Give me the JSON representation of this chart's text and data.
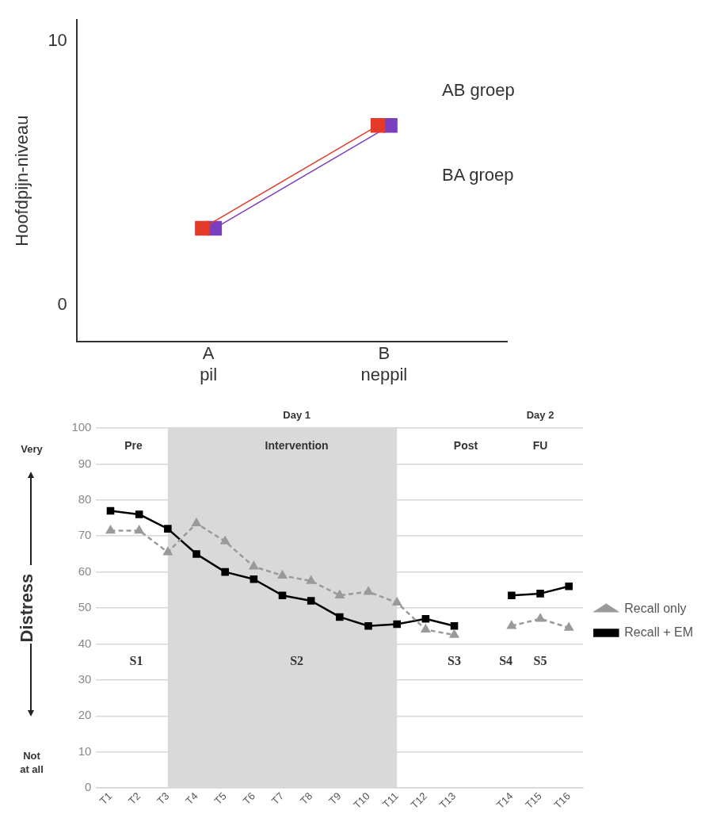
{
  "chart_data": [
    {
      "type": "line",
      "ylabel": "Hoofdpijn-niveau",
      "categories": [
        "A\npil",
        "B\nneppil"
      ],
      "ylim": [
        -1.4,
        10.8
      ],
      "yticks": [
        0,
        10
      ],
      "grid": false,
      "legend": false,
      "marker": "square",
      "series": [
        {
          "color": "#e53a2a",
          "values": [
            2.9,
            6.8
          ]
        },
        {
          "color": "#7a3fbf",
          "values": [
            2.9,
            6.8
          ]
        }
      ],
      "annotations": [
        "AB groep",
        "BA groep"
      ]
    },
    {
      "type": "line",
      "ylabel": "Distress",
      "categories": [
        "T1",
        "T2",
        "T3",
        "T4",
        "T5",
        "T6",
        "T7",
        "T8",
        "T9",
        "T10",
        "T11",
        "T12",
        "T13",
        null,
        "T14",
        "T15",
        "T16"
      ],
      "ylim": [
        0,
        100
      ],
      "yticks": [
        0,
        10,
        20,
        30,
        40,
        50,
        60,
        70,
        80,
        90,
        100
      ],
      "grid": "y",
      "legend": "right",
      "series": [
        {
          "name": "Recall only",
          "color": "#9a9a9a",
          "marker": "triangle",
          "line_style": "dashed",
          "values": [
            71.5,
            71.5,
            65.5,
            73.5,
            68.5,
            61.5,
            59,
            57.5,
            53.5,
            54.5,
            51.5,
            44,
            42.5,
            null,
            45,
            47,
            44.5
          ]
        },
        {
          "name": "Recall + EM",
          "color": "#000000",
          "marker": "square",
          "line_style": "solid",
          "values": [
            77,
            76,
            72,
            65,
            60,
            58,
            53.5,
            52,
            47.5,
            45,
            45.5,
            47,
            45,
            null,
            53.5,
            54,
            56
          ]
        }
      ],
      "bands": [
        {
          "axis": "x",
          "from": "T3",
          "to": "T11",
          "color": "#d9d9d9"
        }
      ],
      "annotations": [
        "Day 1",
        "Day 2",
        "Pre",
        "Intervention",
        "Post",
        "FU",
        "S1",
        "S2",
        "S3",
        "S4",
        "S5",
        "Very",
        "Not at all"
      ]
    }
  ]
}
